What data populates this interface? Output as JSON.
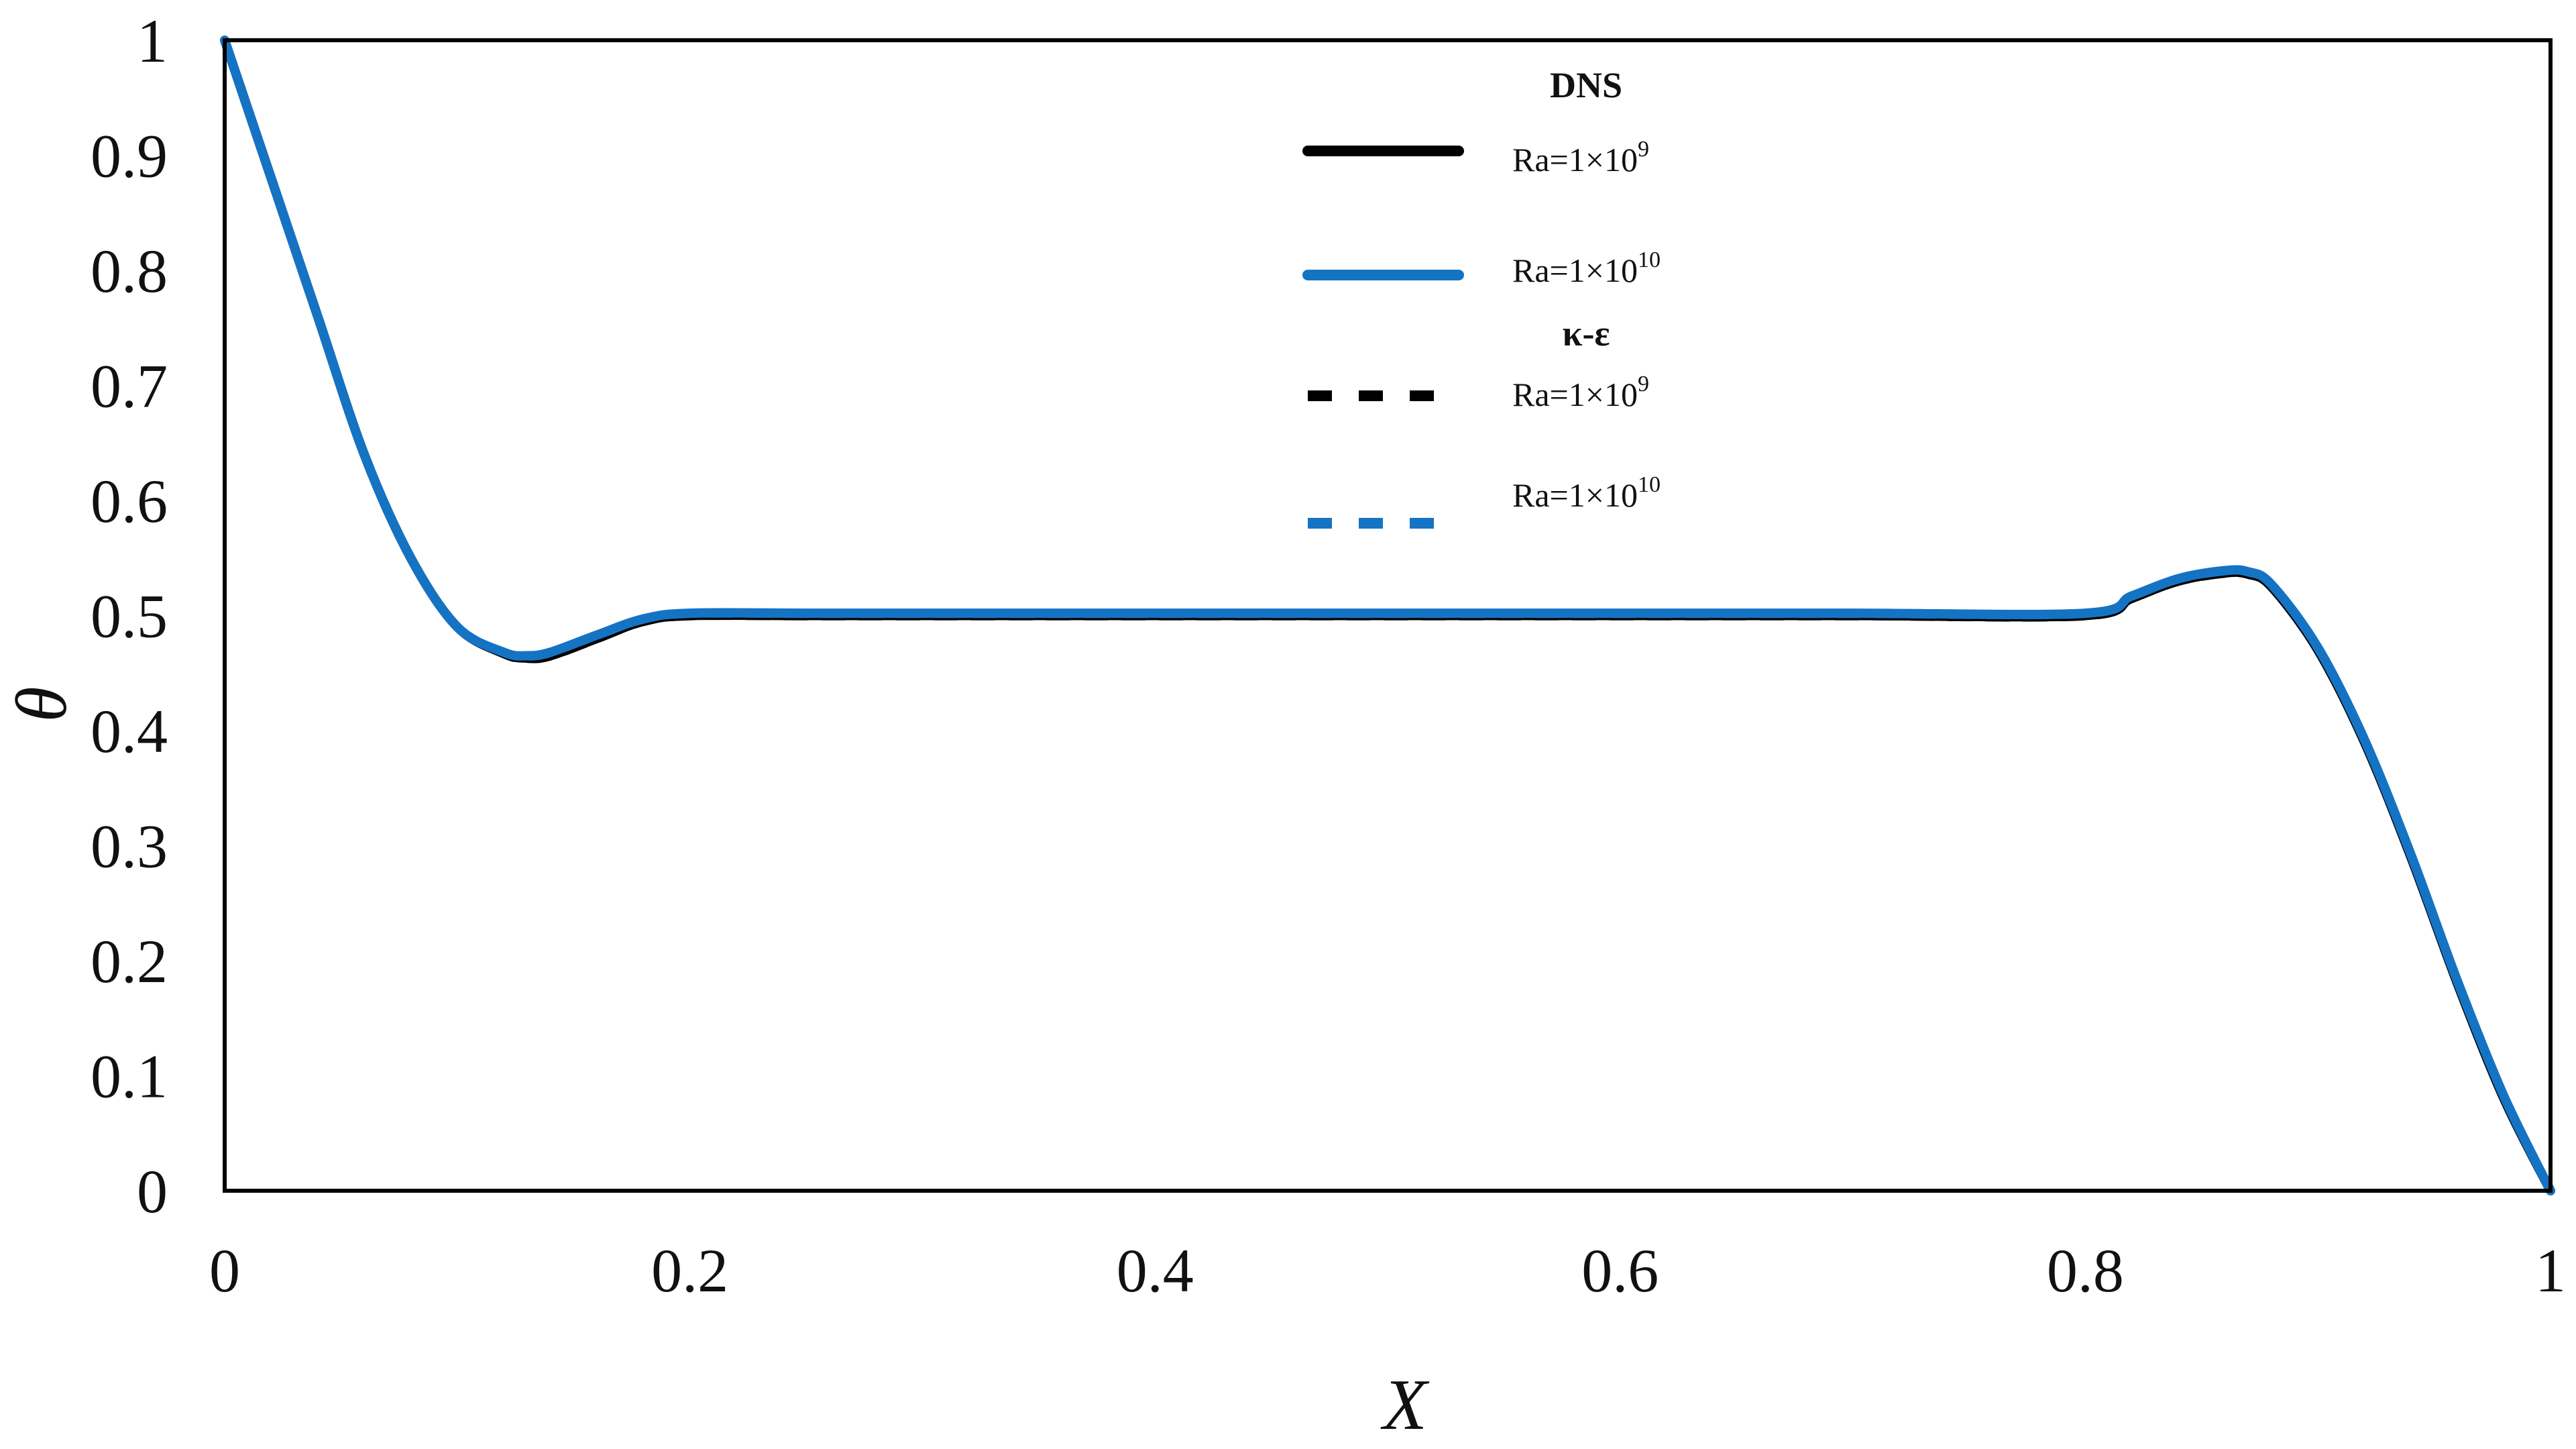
{
  "chart_data": {
    "type": "line",
    "xlabel": "X",
    "ylabel": "θ",
    "xlim": [
      0,
      1
    ],
    "ylim": [
      0,
      1
    ],
    "xticks": [
      "0",
      "0.2",
      "0.4",
      "0.6",
      "0.8",
      "1"
    ],
    "yticks": [
      "0",
      "0.1",
      "0.2",
      "0.3",
      "0.4",
      "0.5",
      "0.6",
      "0.7",
      "0.8",
      "0.9",
      "1"
    ],
    "grid": false,
    "legend_position": "top-center",
    "legend_groups": [
      {
        "title": "DNS",
        "entries": [
          {
            "base": "Ra=1×10",
            "exp": "9",
            "color": "#000000",
            "style": "solid"
          },
          {
            "base": "Ra=1×10",
            "exp": "10",
            "color": "#1573C4",
            "style": "solid"
          }
        ]
      },
      {
        "title": "κ-ε",
        "entries": [
          {
            "base": "Ra=1×10",
            "exp": "9",
            "color": "#000000",
            "style": "dashed"
          },
          {
            "base": "Ra=1×10",
            "exp": "10",
            "color": "#1573C4",
            "style": "dashed"
          }
        ]
      }
    ],
    "series": [
      {
        "group": "DNS",
        "name": "Ra=1×10^9",
        "color": "#000000",
        "style": "solid",
        "x": [
          0,
          0.02,
          0.04,
          0.06,
          0.08,
          0.1,
          0.12,
          0.13,
          0.14,
          0.16,
          0.18,
          0.2,
          0.25,
          0.3,
          0.4,
          0.5,
          0.6,
          0.7,
          0.8,
          0.82,
          0.84,
          0.86,
          0.87,
          0.88,
          0.9,
          0.92,
          0.94,
          0.96,
          0.98,
          1.0
        ],
        "y": [
          1.0,
          0.88,
          0.76,
          0.64,
          0.55,
          0.49,
          0.467,
          0.463,
          0.465,
          0.48,
          0.495,
          0.5,
          0.5,
          0.5,
          0.5,
          0.5,
          0.5,
          0.5,
          0.5,
          0.515,
          0.53,
          0.537,
          0.536,
          0.525,
          0.47,
          0.39,
          0.29,
          0.18,
          0.08,
          0.0
        ]
      },
      {
        "group": "DNS",
        "name": "Ra=1×10^10",
        "color": "#1573C4",
        "style": "solid",
        "x": [
          0,
          0.02,
          0.04,
          0.06,
          0.08,
          0.1,
          0.12,
          0.13,
          0.14,
          0.16,
          0.18,
          0.2,
          0.25,
          0.3,
          0.4,
          0.5,
          0.6,
          0.7,
          0.8,
          0.82,
          0.84,
          0.86,
          0.87,
          0.88,
          0.9,
          0.92,
          0.94,
          0.96,
          0.98,
          1.0
        ],
        "y": [
          1.0,
          0.88,
          0.76,
          0.64,
          0.55,
          0.49,
          0.468,
          0.465,
          0.468,
          0.483,
          0.497,
          0.502,
          0.502,
          0.502,
          0.502,
          0.502,
          0.502,
          0.502,
          0.502,
          0.517,
          0.532,
          0.539,
          0.538,
          0.527,
          0.472,
          0.392,
          0.292,
          0.182,
          0.082,
          0.0
        ]
      },
      {
        "group": "κ-ε",
        "name": "Ra=1×10^9",
        "color": "#000000",
        "style": "dashed",
        "x": [
          0,
          0.02,
          0.04,
          0.06,
          0.08,
          0.1,
          0.12,
          0.13,
          0.14,
          0.16,
          0.18,
          0.2,
          0.25,
          0.3,
          0.4,
          0.5,
          0.6,
          0.7,
          0.8,
          0.82,
          0.84,
          0.86,
          0.87,
          0.88,
          0.9,
          0.92,
          0.94,
          0.96,
          0.98,
          1.0
        ],
        "y": [
          1.0,
          0.88,
          0.76,
          0.64,
          0.55,
          0.49,
          0.466,
          0.462,
          0.464,
          0.479,
          0.494,
          0.499,
          0.499,
          0.499,
          0.499,
          0.499,
          0.499,
          0.499,
          0.499,
          0.514,
          0.529,
          0.536,
          0.535,
          0.524,
          0.469,
          0.389,
          0.289,
          0.179,
          0.079,
          0.0
        ]
      },
      {
        "group": "κ-ε",
        "name": "Ra=1×10^10",
        "color": "#1573C4",
        "style": "dashed",
        "x": [
          0,
          0.02,
          0.04,
          0.06,
          0.08,
          0.1,
          0.12,
          0.13,
          0.14,
          0.16,
          0.18,
          0.2,
          0.25,
          0.3,
          0.4,
          0.5,
          0.6,
          0.7,
          0.8,
          0.82,
          0.84,
          0.86,
          0.87,
          0.88,
          0.9,
          0.92,
          0.94,
          0.96,
          0.98,
          1.0
        ],
        "y": [
          1.0,
          0.88,
          0.76,
          0.64,
          0.55,
          0.49,
          0.468,
          0.464,
          0.467,
          0.482,
          0.496,
          0.501,
          0.501,
          0.501,
          0.501,
          0.501,
          0.501,
          0.501,
          0.501,
          0.516,
          0.531,
          0.538,
          0.537,
          0.526,
          0.471,
          0.391,
          0.291,
          0.181,
          0.081,
          0.0
        ]
      }
    ]
  }
}
